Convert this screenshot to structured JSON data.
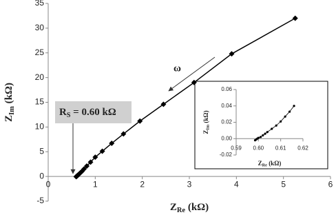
{
  "chart_data": [
    {
      "type": "line",
      "color": "#000000",
      "marker": "diamond",
      "x_label": {
        "symbol": "Z",
        "subscript": "Re",
        "unit": " (kΩ)"
      },
      "y_label": {
        "symbol": "Z",
        "subscript": "Im",
        "unit": " (kΩ)"
      },
      "x": [
        0.595,
        0.6,
        0.605,
        0.61,
        0.615,
        0.62,
        0.63,
        0.64,
        0.65,
        0.67,
        0.69,
        0.72,
        0.76,
        0.82,
        0.9,
        1.0,
        1.15,
        1.35,
        1.6,
        1.95,
        2.45,
        3.1,
        3.9,
        5.25
      ],
      "values": [
        -0.05,
        0,
        0.03,
        0.07,
        0.12,
        0.18,
        0.25,
        0.33,
        0.42,
        0.6,
        0.8,
        1.05,
        1.5,
        2.1,
        2.9,
        3.9,
        5.1,
        6.7,
        8.6,
        11.2,
        14.6,
        19,
        24.8,
        32
      ],
      "xlim": [
        0,
        6
      ],
      "xticks": [
        0,
        1,
        2,
        3,
        4,
        5,
        6
      ],
      "ylim": [
        -5,
        35
      ],
      "yticks": [
        -5,
        0,
        5,
        10,
        15,
        20,
        25,
        30,
        35
      ],
      "annotations": [
        {
          "text": "ω"
        },
        {
          "symbol": "R",
          "subscript": "S",
          "text": " = 0.60 kΩ"
        }
      ]
    },
    {
      "type": "line",
      "color": "#000000",
      "marker": "circle",
      "x_label": {
        "symbol": "Z",
        "subscript": "Re",
        "unit": " (kΩ)"
      },
      "y_label": {
        "symbol": "Z",
        "subscript": "Im",
        "unit": " (kΩ)"
      },
      "x": [
        0.5985,
        0.599,
        0.5995,
        0.6,
        0.601,
        0.602,
        0.603,
        0.604,
        0.606,
        0.608,
        0.61,
        0.612,
        0.614,
        0.616
      ],
      "values": [
        -0.002,
        -0.001,
        0,
        0.001,
        0.002,
        0.004,
        0.006,
        0.008,
        0.012,
        0.016,
        0.021,
        0.027,
        0.033,
        0.04
      ],
      "xlim": [
        0.59,
        0.62
      ],
      "xticks": [
        0.59,
        {
          "value": 0.6,
          "label": "0.60"
        },
        0.61,
        0.62
      ],
      "ylim": [
        -0.02,
        0.06
      ],
      "yticks": [
        -0.02,
        {
          "value": 0,
          "label": "0.00"
        },
        0.02,
        0.04,
        0.06
      ]
    }
  ]
}
